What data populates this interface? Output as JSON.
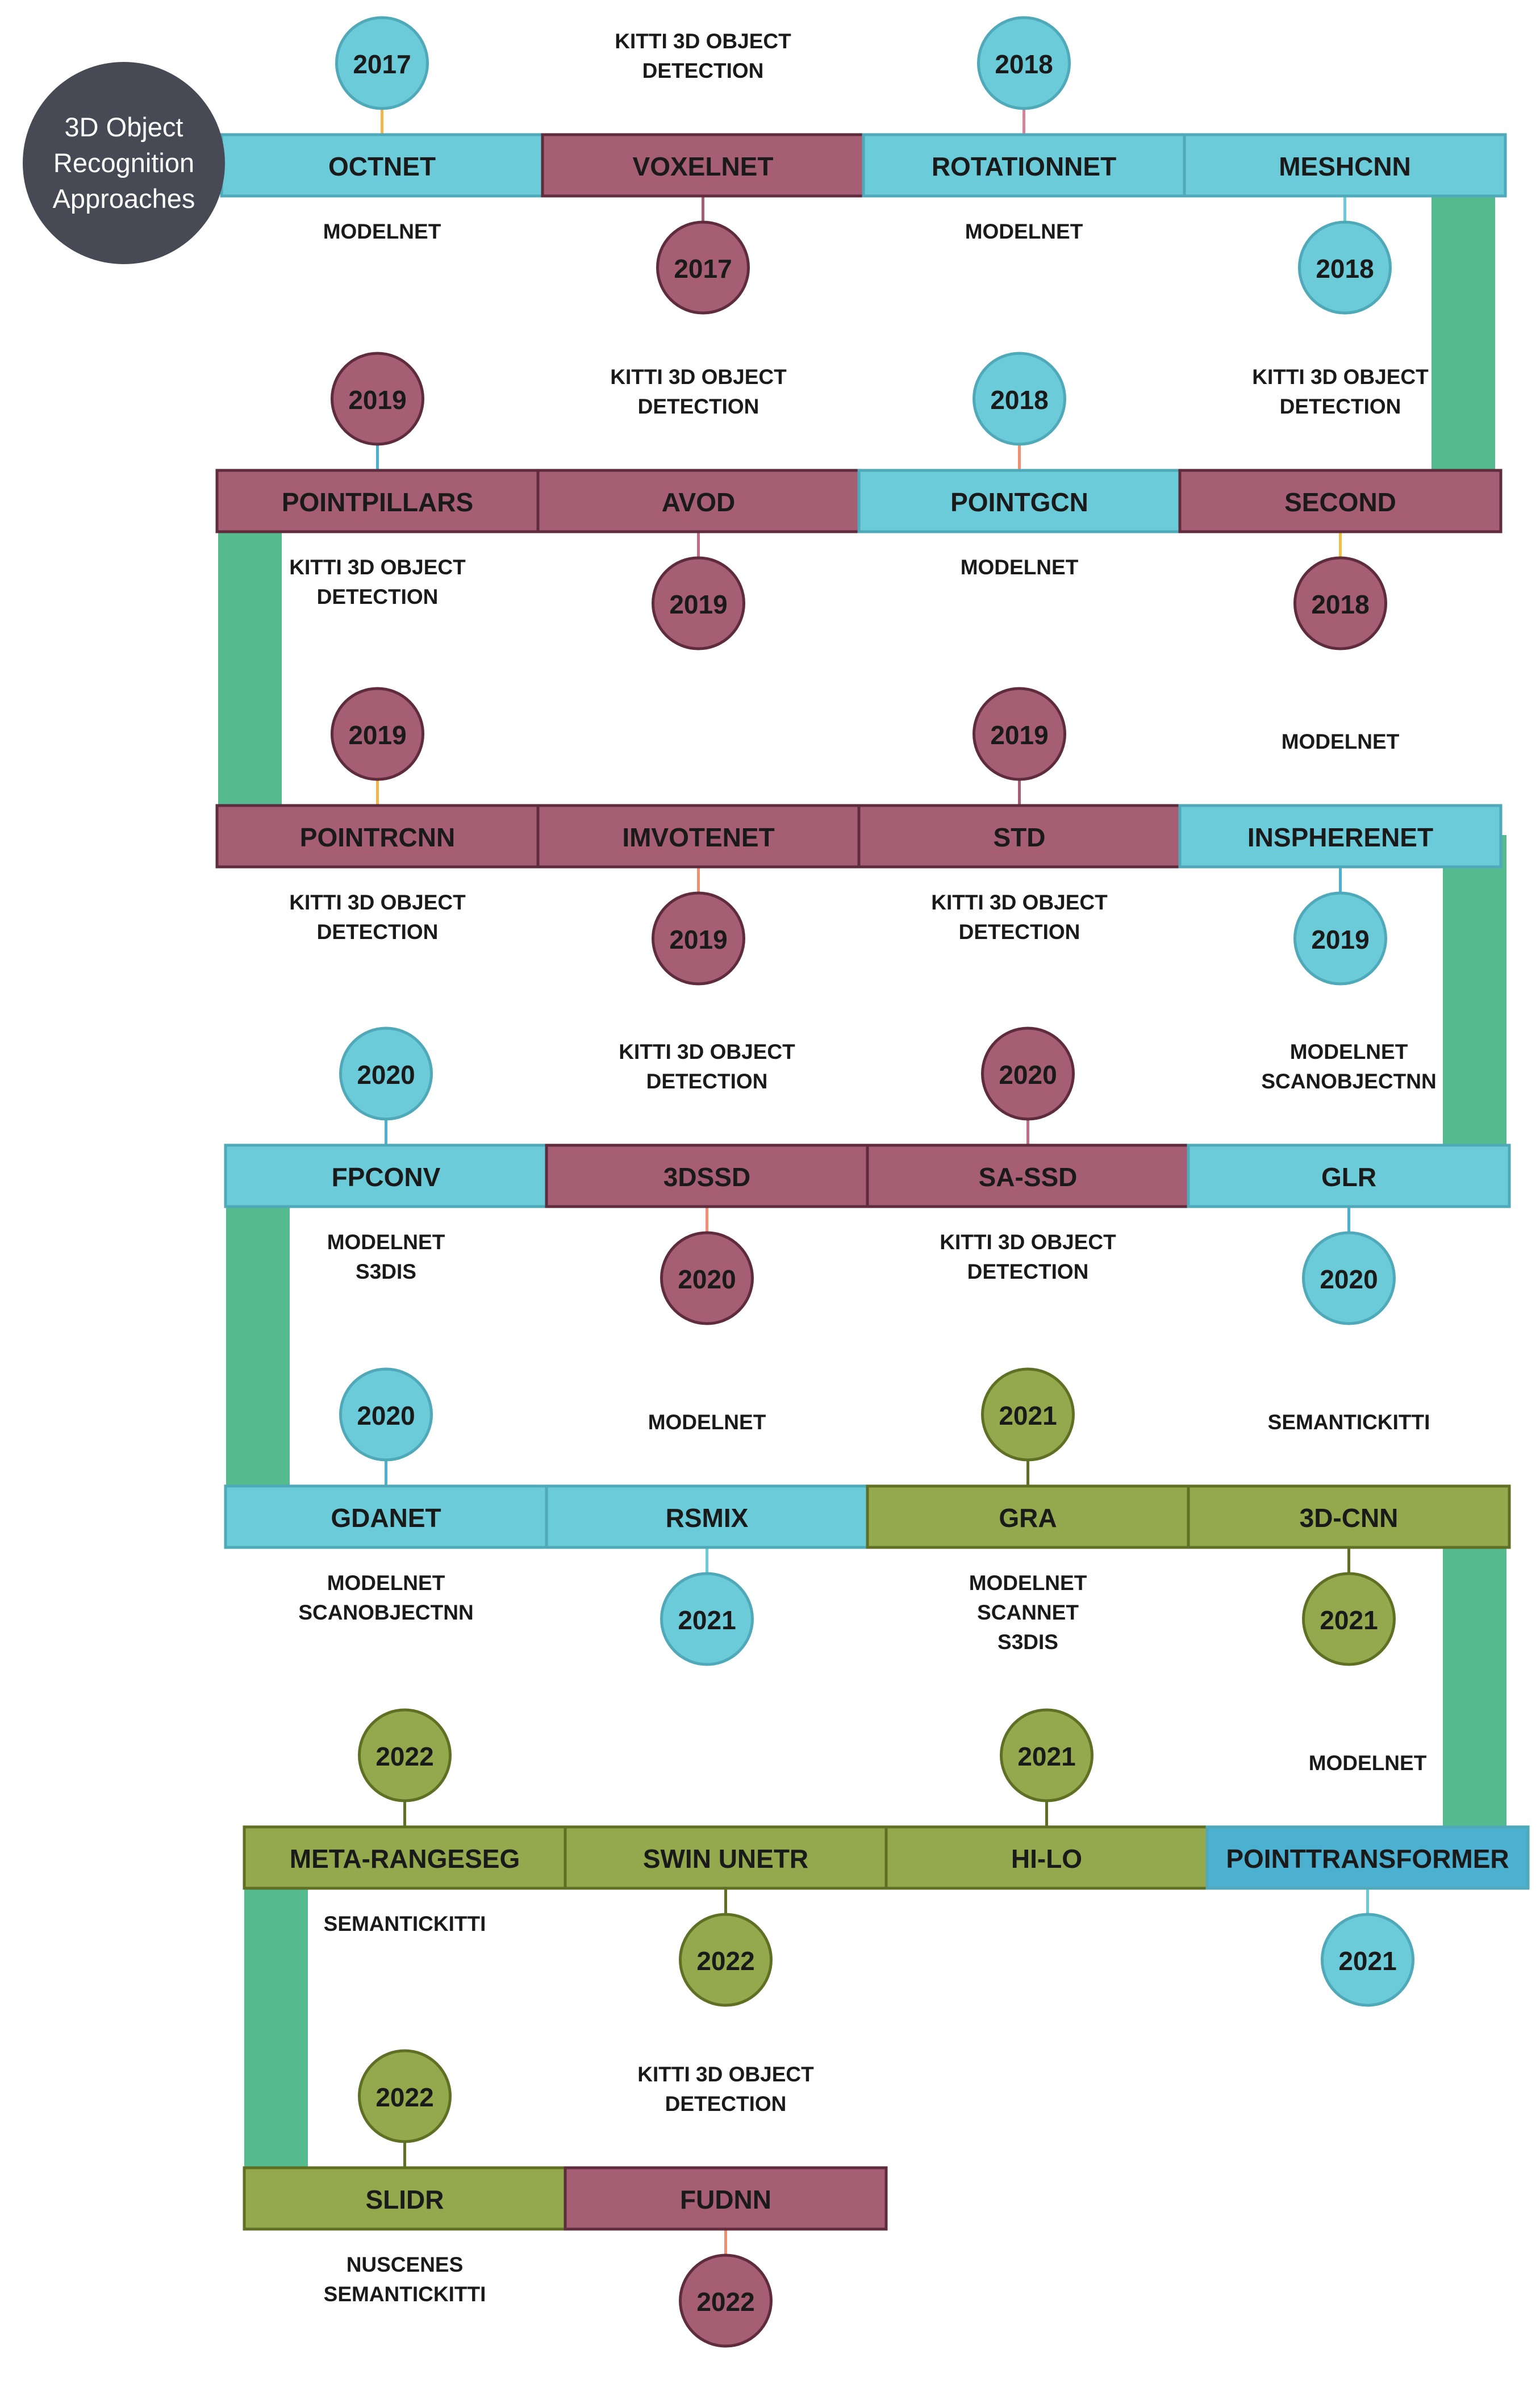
{
  "title": {
    "lines": [
      "3D Object",
      "Recognition",
      "Approaches"
    ],
    "color": "#474954"
  },
  "colors": {
    "cyan": "#6BCBD9",
    "mauve": "#A65E74",
    "olive": "#94A84E",
    "blue": "#4CB0D0",
    "connector": "#55BB8E",
    "outline_cyan": "#4FA9B8",
    "outline_mauve": "#5F2C3E",
    "outline_olive": "#5F7024"
  },
  "rows": [
    {
      "methods": [
        {
          "name": "OCTNET",
          "color": "cyan",
          "year": "2017",
          "year_pos": "above",
          "year_color": "cyan",
          "stem": "#F0B84A",
          "datasets": [
            "MODELNET"
          ],
          "ds_pos": "below"
        },
        {
          "name": "VOXELNET",
          "color": "mauve",
          "year": "2017",
          "year_pos": "below",
          "year_color": "mauve",
          "stem": "#A65E74",
          "datasets": [
            "KITTI 3D OBJECT",
            "DETECTION"
          ],
          "ds_pos": "above"
        },
        {
          "name": "ROTATIONNET",
          "color": "cyan",
          "year": "2018",
          "year_pos": "above",
          "year_color": "cyan",
          "stem": "#D78398",
          "datasets": [
            "MODELNET"
          ],
          "ds_pos": "below"
        },
        {
          "name": "MESHCNN",
          "color": "cyan",
          "year": "2018",
          "year_pos": "below",
          "year_color": "cyan",
          "stem": "#6BCBD9",
          "datasets": [],
          "ds_pos": "below"
        }
      ]
    },
    {
      "methods": [
        {
          "name": "POINTPILLARS",
          "color": "mauve",
          "year": "2019",
          "year_pos": "above",
          "year_color": "mauve",
          "stem": "#4CB0D0",
          "datasets": [
            "KITTI 3D OBJECT",
            "DETECTION"
          ],
          "ds_pos": "below"
        },
        {
          "name": "AVOD",
          "color": "mauve",
          "year": "2019",
          "year_pos": "below",
          "year_color": "mauve",
          "stem": "#C46A8A",
          "datasets": [
            "KITTI 3D OBJECT",
            "DETECTION"
          ],
          "ds_pos": "above"
        },
        {
          "name": "POINTGCN",
          "color": "cyan",
          "year": "2018",
          "year_pos": "above",
          "year_color": "cyan",
          "stem": "#F09070",
          "datasets": [
            "MODELNET"
          ],
          "ds_pos": "below"
        },
        {
          "name": "SECOND",
          "color": "mauve",
          "year": "2018",
          "year_pos": "below",
          "year_color": "mauve",
          "stem": "#F0C040",
          "datasets": [
            "KITTI 3D OBJECT",
            "DETECTION"
          ],
          "ds_pos": "above"
        }
      ]
    },
    {
      "methods": [
        {
          "name": "POINTRCNN",
          "color": "mauve",
          "year": "2019",
          "year_pos": "above",
          "year_color": "mauve",
          "stem": "#F0B84A",
          "datasets": [
            "KITTI 3D OBJECT",
            "DETECTION"
          ],
          "ds_pos": "below"
        },
        {
          "name": "IMVOTENET",
          "color": "mauve",
          "year": "2019",
          "year_pos": "below",
          "year_color": "mauve",
          "stem": "#F09070",
          "datasets": [],
          "ds_pos": "above"
        },
        {
          "name": "STD",
          "color": "mauve",
          "year": "2019",
          "year_pos": "above",
          "year_color": "mauve",
          "stem": "#A65E74",
          "datasets": [
            "KITTI 3D OBJECT",
            "DETECTION"
          ],
          "ds_pos": "below"
        },
        {
          "name": "INSPHERENET",
          "color": "cyan",
          "year": "2019",
          "year_pos": "below",
          "year_color": "cyan",
          "stem": "#4CB0D0",
          "datasets": [
            "MODELNET"
          ],
          "ds_pos": "above"
        }
      ]
    },
    {
      "methods": [
        {
          "name": "FPCONV",
          "color": "cyan",
          "year": "2020",
          "year_pos": "above",
          "year_color": "cyan",
          "stem": "#4CB0D0",
          "datasets": [
            "MODELNET",
            "S3DIS"
          ],
          "ds_pos": "below"
        },
        {
          "name": "3DSSD",
          "color": "mauve",
          "year": "2020",
          "year_pos": "below",
          "year_color": "mauve",
          "stem": "#F09070",
          "datasets": [
            "KITTI 3D OBJECT",
            "DETECTION"
          ],
          "ds_pos": "above"
        },
        {
          "name": "SA-SSD",
          "color": "mauve",
          "year": "2020",
          "year_pos": "above",
          "year_color": "mauve",
          "stem": "#C46A8A",
          "datasets": [
            "KITTI 3D OBJECT",
            "DETECTION"
          ],
          "ds_pos": "below"
        },
        {
          "name": "GLR",
          "color": "cyan",
          "year": "2020",
          "year_pos": "below",
          "year_color": "cyan",
          "stem": "#4CB0D0",
          "datasets": [
            "MODELNET",
            "SCANOBJECTNN"
          ],
          "ds_pos": "above"
        }
      ]
    },
    {
      "methods": [
        {
          "name": "GDANET",
          "color": "cyan",
          "year": "2020",
          "year_pos": "above",
          "year_color": "cyan",
          "stem": "#4CB0D0",
          "datasets": [
            "MODELNET",
            "SCANOBJECTNN"
          ],
          "ds_pos": "below"
        },
        {
          "name": "RSMIX",
          "color": "cyan",
          "year": "2021",
          "year_pos": "below",
          "year_color": "cyan",
          "stem": "#6BCBD9",
          "datasets": [
            "MODELNET"
          ],
          "ds_pos": "above"
        },
        {
          "name": "GRA",
          "color": "olive",
          "year": "2021",
          "year_pos": "above",
          "year_color": "olive",
          "stem": "#5F7024",
          "datasets": [
            "MODELNET",
            "SCANNET",
            "S3DIS"
          ],
          "ds_pos": "below"
        },
        {
          "name": "3D-CNN",
          "color": "olive",
          "year": "2021",
          "year_pos": "below",
          "year_color": "olive",
          "stem": "#5F7024",
          "datasets": [
            "SEMANTICKITTI"
          ],
          "ds_pos": "above"
        }
      ]
    },
    {
      "methods": [
        {
          "name": "META-RANGESEG",
          "color": "olive",
          "year": "2022",
          "year_pos": "above",
          "year_color": "olive",
          "stem": "#5F7024",
          "datasets": [
            "SEMANTICKITTI"
          ],
          "ds_pos": "below"
        },
        {
          "name": "SWIN UNETR",
          "color": "olive",
          "year": "2022",
          "year_pos": "below",
          "year_color": "olive",
          "stem": "#5F7024",
          "datasets": [],
          "ds_pos": "above"
        },
        {
          "name": "HI-LO",
          "color": "olive",
          "year": "2021",
          "year_pos": "above",
          "year_color": "olive",
          "stem": "#5F7024",
          "datasets": [],
          "ds_pos": "below"
        },
        {
          "name": "POINTTRANSFORMER",
          "color": "blue",
          "year": "2021",
          "year_pos": "below",
          "year_color": "cyan",
          "stem": "#6BCBD9",
          "datasets": [
            "MODELNET"
          ],
          "ds_pos": "above"
        }
      ]
    },
    {
      "methods": [
        {
          "name": "SLIDR",
          "color": "olive",
          "year": "2022",
          "year_pos": "above",
          "year_color": "olive",
          "stem": "#5F7024",
          "datasets": [
            "NUSCENES",
            "SEMANTICKITTI"
          ],
          "ds_pos": "below"
        },
        {
          "name": "FUDNN",
          "color": "mauve",
          "year": "2022",
          "year_pos": "below",
          "year_color": "mauve",
          "stem": "#F09070",
          "datasets": [
            "KITTI 3D OBJECT",
            "DETECTION"
          ],
          "ds_pos": "above"
        }
      ]
    }
  ]
}
